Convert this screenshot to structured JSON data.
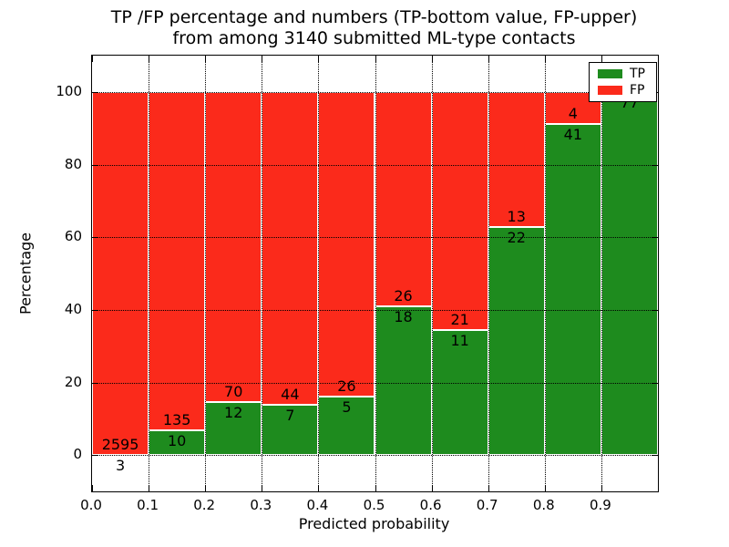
{
  "title": {
    "line1": "TP /FP percentage and numbers (TP-bottom value, FP-upper)",
    "line2": "from among 3140 submitted ML-type contacts"
  },
  "chart_data": {
    "type": "bar",
    "stacked": true,
    "normalized_to_percent": true,
    "title": "TP /FP percentage and numbers (TP-bottom value, FP-upper)\nfrom among 3140 submitted ML-type contacts",
    "xlabel": "Predicted probability",
    "ylabel": "Percentage",
    "total_contacts": 3140,
    "categories": [
      "0.0-0.1",
      "0.1-0.2",
      "0.2-0.3",
      "0.3-0.4",
      "0.4-0.5",
      "0.5-0.6",
      "0.6-0.7",
      "0.7-0.8",
      "0.8-0.9",
      "0.9-1.0"
    ],
    "series": [
      {
        "name": "TP",
        "color": "#1e8b1e",
        "counts": [
          3,
          10,
          12,
          7,
          5,
          18,
          11,
          22,
          41,
          77
        ]
      },
      {
        "name": "FP",
        "color": "#fb2a1b",
        "counts": [
          2595,
          135,
          70,
          44,
          26,
          26,
          21,
          13,
          4,
          0
        ]
      }
    ],
    "tp_percent_of_bin": [
      0.12,
      6.9,
      14.63,
      13.73,
      16.13,
      40.91,
      34.38,
      62.86,
      91.11,
      100.0
    ],
    "x_tick_values": [
      0,
      0.1,
      0.2,
      0.3,
      0.4,
      0.5,
      0.6,
      0.7,
      0.8,
      0.9
    ],
    "x_tick_labels": [
      "0.0",
      "0.1",
      "0.2",
      "0.3",
      "0.4",
      "0.5",
      "0.6",
      "0.7",
      "0.8",
      "0.9"
    ],
    "y_tick_values": [
      0,
      20,
      40,
      60,
      80,
      100
    ],
    "y_tick_labels": [
      "0",
      "20",
      "40",
      "60",
      "80",
      "100"
    ],
    "xlim": [
      0,
      1.0
    ],
    "ylim": [
      -10,
      110
    ],
    "grid": "dotted both axes",
    "bar_edge_color": "#ffffff",
    "legend": {
      "position": "upper right",
      "items": [
        {
          "label": "TP",
          "color": "#1e8b1e"
        },
        {
          "label": "FP",
          "color": "#fb2a1b"
        }
      ]
    }
  }
}
